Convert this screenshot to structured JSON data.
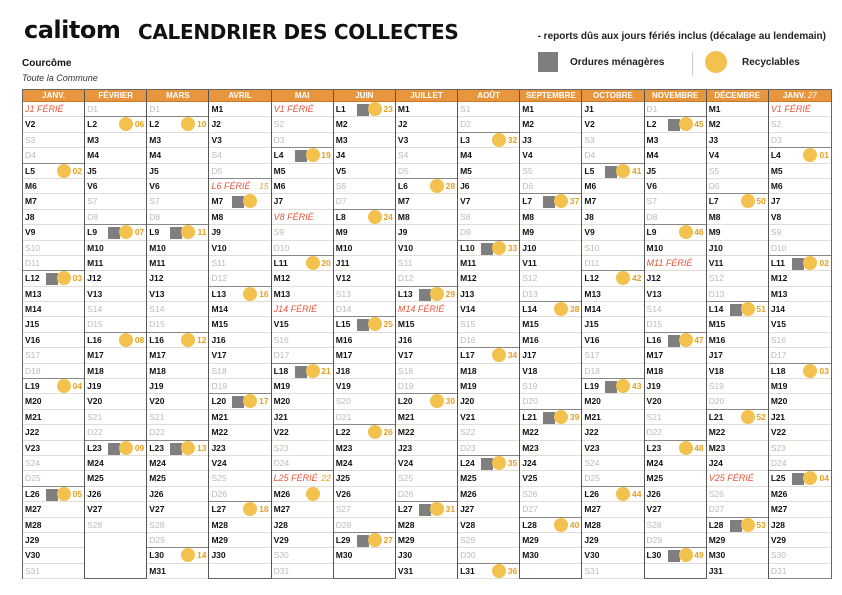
{
  "header": {
    "logo": "calitom",
    "title": "CALENDRIER DES COLLECTES",
    "note": "- reports dûs aux jours fériés inclus (décalage au lendemain)",
    "commune": "Courcôme",
    "zone": "Toute la Commune"
  },
  "legend": {
    "om_label": "Ordures ménagères",
    "rec_label": "Recyclables",
    "om_color": "#7f7f7f",
    "rec_color": "#f2c14e"
  },
  "weekday_letters": [
    "L",
    "M",
    "M",
    "J",
    "V",
    "S",
    "D"
  ],
  "months": [
    {
      "name": "JANV.",
      "first_weekday": 3,
      "days": 31,
      "events": [
        {
          "d": 1,
          "ferie": "FÉRIÉ"
        },
        {
          "d": 5,
          "rec": true,
          "wk": "02"
        },
        {
          "d": 12,
          "om": true,
          "rec": true,
          "wk": "03"
        },
        {
          "d": 19,
          "rec": true,
          "wk": "04"
        },
        {
          "d": 26,
          "om": true,
          "rec": true,
          "wk": "05"
        }
      ]
    },
    {
      "name": "FÉVRIER",
      "first_weekday": 6,
      "days": 28,
      "events": [
        {
          "d": 2,
          "rec": true,
          "wk": "06"
        },
        {
          "d": 9,
          "om": true,
          "rec": true,
          "wk": "07"
        },
        {
          "d": 16,
          "rec": true,
          "wk": "08"
        },
        {
          "d": 23,
          "om": true,
          "rec": true,
          "wk": "09"
        }
      ]
    },
    {
      "name": "MARS",
      "first_weekday": 6,
      "days": 31,
      "events": [
        {
          "d": 2,
          "rec": true,
          "wk": "10"
        },
        {
          "d": 9,
          "om": true,
          "rec": true,
          "wk": "11"
        },
        {
          "d": 16,
          "rec": true,
          "wk": "12"
        },
        {
          "d": 23,
          "om": true,
          "rec": true,
          "wk": "13"
        },
        {
          "d": 30,
          "rec": true,
          "wk": "14"
        }
      ]
    },
    {
      "name": "AVRIL",
      "first_weekday": 2,
      "days": 30,
      "events": [
        {
          "d": 6,
          "ferie": "FÉRIÉ",
          "wk": "15"
        },
        {
          "d": 7,
          "om": true,
          "rec": true
        },
        {
          "d": 13,
          "rec": true,
          "wk": "16"
        },
        {
          "d": 20,
          "om": true,
          "rec": true,
          "wk": "17"
        },
        {
          "d": 27,
          "rec": true,
          "wk": "18"
        }
      ]
    },
    {
      "name": "MAI",
      "first_weekday": 4,
      "days": 31,
      "events": [
        {
          "d": 1,
          "ferie": "FÉRIÉ"
        },
        {
          "d": 4,
          "om": true,
          "rec": true,
          "wk": "19"
        },
        {
          "d": 8,
          "ferie": "FÉRIÉ"
        },
        {
          "d": 11,
          "rec": true,
          "wk": "20"
        },
        {
          "d": 14,
          "ferie": "FÉRIÉ"
        },
        {
          "d": 18,
          "om": true,
          "rec": true,
          "wk": "21"
        },
        {
          "d": 25,
          "ferie": "FÉRIÉ",
          "wk": "22"
        },
        {
          "d": 26,
          "rec": true
        }
      ]
    },
    {
      "name": "JUIN",
      "first_weekday": 0,
      "days": 30,
      "events": [
        {
          "d": 1,
          "om": true,
          "rec": true,
          "wk": "23"
        },
        {
          "d": 8,
          "rec": true,
          "wk": "24"
        },
        {
          "d": 15,
          "om": true,
          "rec": true,
          "wk": "25"
        },
        {
          "d": 22,
          "rec": true,
          "wk": "26"
        },
        {
          "d": 29,
          "om": true,
          "rec": true,
          "wk": "27"
        }
      ]
    },
    {
      "name": "JUILLET",
      "first_weekday": 2,
      "days": 31,
      "events": [
        {
          "d": 6,
          "rec": true,
          "wk": "28"
        },
        {
          "d": 13,
          "om": true,
          "rec": true,
          "wk": "29"
        },
        {
          "d": 14,
          "ferie": "FÉRIÉ"
        },
        {
          "d": 20,
          "rec": true,
          "wk": "30"
        },
        {
          "d": 27,
          "om": true,
          "rec": true,
          "wk": "31"
        }
      ]
    },
    {
      "name": "AOÛT",
      "first_weekday": 5,
      "days": 31,
      "events": [
        {
          "d": 3,
          "rec": true,
          "wk": "32"
        },
        {
          "d": 10,
          "om": true,
          "rec": true,
          "wk": "33"
        },
        {
          "d": 17,
          "rec": true,
          "wk": "34"
        },
        {
          "d": 24,
          "om": true,
          "rec": true,
          "wk": "35"
        },
        {
          "d": 31,
          "rec": true,
          "wk": "36"
        }
      ]
    },
    {
      "name": "SEPTEMBRE",
      "first_weekday": 1,
      "days": 30,
      "events": [
        {
          "d": 7,
          "om": true,
          "rec": true,
          "wk": "37"
        },
        {
          "d": 14,
          "rec": true,
          "wk": "38"
        },
        {
          "d": 21,
          "om": true,
          "rec": true,
          "wk": "39"
        },
        {
          "d": 28,
          "rec": true,
          "wk": "40"
        }
      ]
    },
    {
      "name": "OCTOBRE",
      "first_weekday": 3,
      "days": 31,
      "events": [
        {
          "d": 5,
          "om": true,
          "rec": true,
          "wk": "41"
        },
        {
          "d": 12,
          "rec": true,
          "wk": "42"
        },
        {
          "d": 19,
          "om": true,
          "rec": true,
          "wk": "43"
        },
        {
          "d": 26,
          "rec": true,
          "wk": "44"
        }
      ]
    },
    {
      "name": "NOVEMBRE",
      "first_weekday": 6,
      "days": 30,
      "events": [
        {
          "d": 2,
          "om": true,
          "rec": true,
          "wk": "45"
        },
        {
          "d": 9,
          "rec": true,
          "wk": "46"
        },
        {
          "d": 11,
          "ferie": "FÉRIÉ"
        },
        {
          "d": 16,
          "om": true,
          "rec": true,
          "wk": "47"
        },
        {
          "d": 23,
          "rec": true,
          "wk": "48"
        },
        {
          "d": 30,
          "om": true,
          "rec": true,
          "wk": "49"
        }
      ]
    },
    {
      "name": "DÉCEMBRE",
      "first_weekday": 1,
      "days": 31,
      "events": [
        {
          "d": 7,
          "rec": true,
          "wk": "50"
        },
        {
          "d": 14,
          "om": true,
          "rec": true,
          "wk": "51"
        },
        {
          "d": 21,
          "rec": true,
          "wk": "52"
        },
        {
          "d": 25,
          "ferie": "FÉRIÉ"
        },
        {
          "d": 28,
          "om": true,
          "rec": true,
          "wk": "53"
        }
      ]
    },
    {
      "name": "JANV.",
      "year_suffix": "27",
      "first_weekday": 4,
      "days": 31,
      "events": [
        {
          "d": 1,
          "ferie": "FÉRIÉ"
        },
        {
          "d": 4,
          "rec": true,
          "wk": "01"
        },
        {
          "d": 11,
          "om": true,
          "rec": true,
          "wk": "02"
        },
        {
          "d": 18,
          "rec": true,
          "wk": "03"
        },
        {
          "d": 25,
          "om": true,
          "rec": true,
          "wk": "04"
        }
      ]
    }
  ]
}
